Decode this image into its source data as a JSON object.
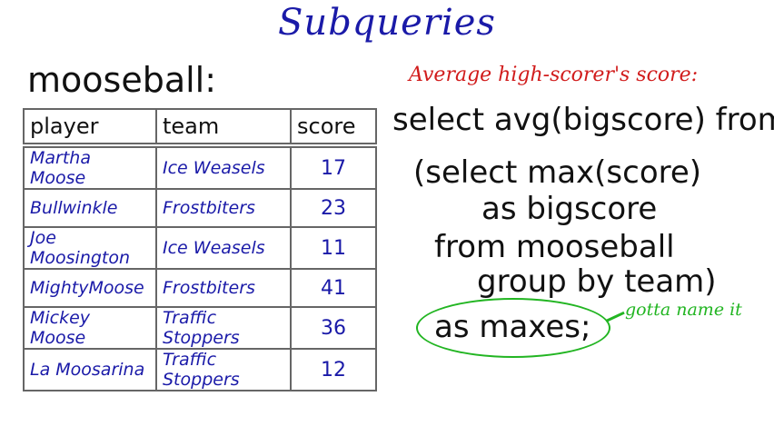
{
  "title": "Subqueries",
  "table_name": "mooseball:",
  "table": {
    "headers": [
      "player",
      "team",
      "score"
    ],
    "rows": [
      [
        "Martha Moose",
        "Ice Weasels",
        "17"
      ],
      [
        "Bullwinkle",
        "Frostbiters",
        "23"
      ],
      [
        "Joe Moosington",
        "Ice Weasels",
        "11"
      ],
      [
        "MightyMoose",
        "Frostbiters",
        "41"
      ],
      [
        "Mickey Moose",
        "Traffic Stoppers",
        "36"
      ],
      [
        "La Moosarina",
        "Traffic Stoppers",
        "12"
      ]
    ]
  },
  "note_red": "Average high-scorer's score:",
  "code": {
    "line1": "select avg(bigscore) from",
    "line2": "(select max(score)",
    "line3": "as bigscore",
    "line4": "from mooseball",
    "line5": "group by team)",
    "line6": "as maxes;"
  },
  "note_green": "gotta name it",
  "colors": {
    "title": "#1a1aa8",
    "table_values": "#1a1aa8",
    "red_note": "#d11c1c",
    "green_note": "#22b522"
  }
}
